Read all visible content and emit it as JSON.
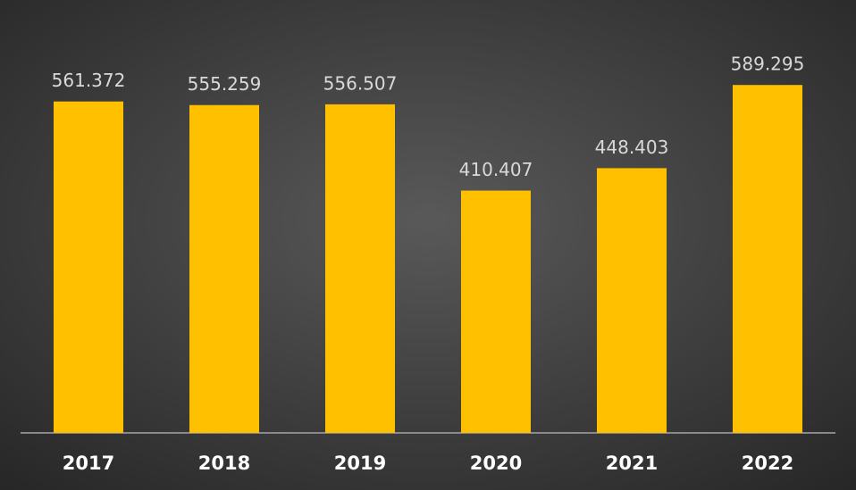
{
  "chart_data": {
    "type": "bar",
    "categories": [
      "2017",
      "2018",
      "2019",
      "2020",
      "2021",
      "2022"
    ],
    "values": [
      561.372,
      555.259,
      556.507,
      410.407,
      448.403,
      589.295
    ],
    "color": "#ffc000",
    "ylim": [
      0,
      700
    ]
  }
}
